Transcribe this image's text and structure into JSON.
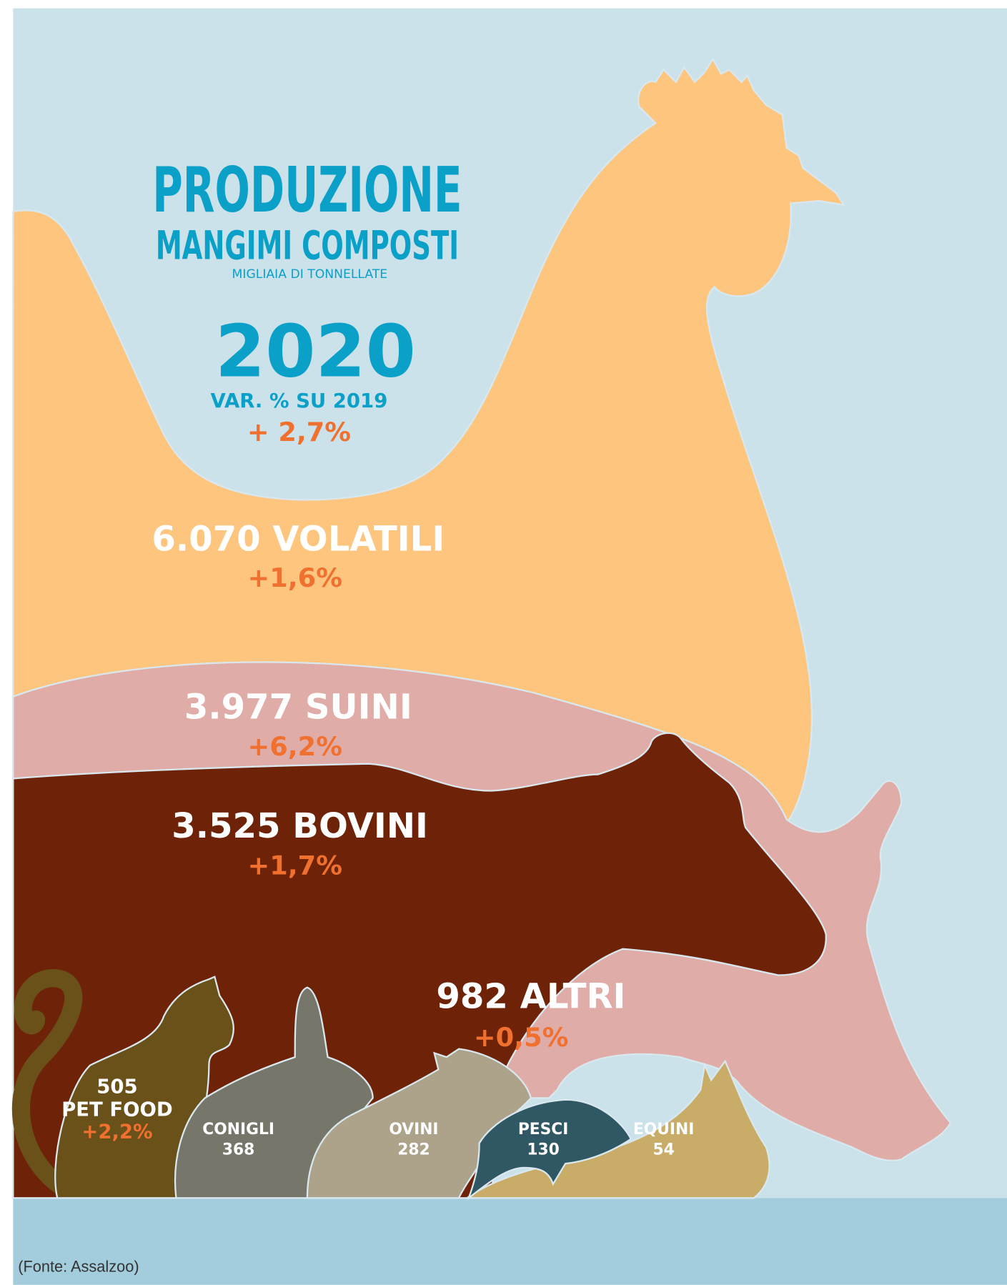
{
  "header": {
    "title": "PRODUZIONE",
    "subtitle": "MANGIMI COMPOSTI",
    "unit": "MIGLIAIA DI TONNELLATE",
    "year": "2020",
    "change_label": "VAR. % SU 2019",
    "change": "+ 2,7%"
  },
  "main_categories": [
    {
      "value": "6.070",
      "label": "VOLATILI",
      "change": "+1,6%"
    },
    {
      "value": "3.977",
      "label": "SUINI",
      "change": "+6,2%"
    },
    {
      "value": "3.525",
      "label": "BOVINI",
      "change": "+1,7%"
    },
    {
      "value": "982",
      "label": "ALTRI",
      "change": "+0,5%"
    }
  ],
  "pet_food": {
    "value": "505",
    "label": "PET FOOD",
    "change": "+2,2%"
  },
  "others": [
    {
      "label": "CONIGLI",
      "value": "368"
    },
    {
      "label": "OVINI",
      "value": "282"
    },
    {
      "label": "PESCI",
      "value": "130"
    },
    {
      "label": "EQUINI",
      "value": "54"
    }
  ],
  "source": "(Fonte: Assalzoo)"
}
